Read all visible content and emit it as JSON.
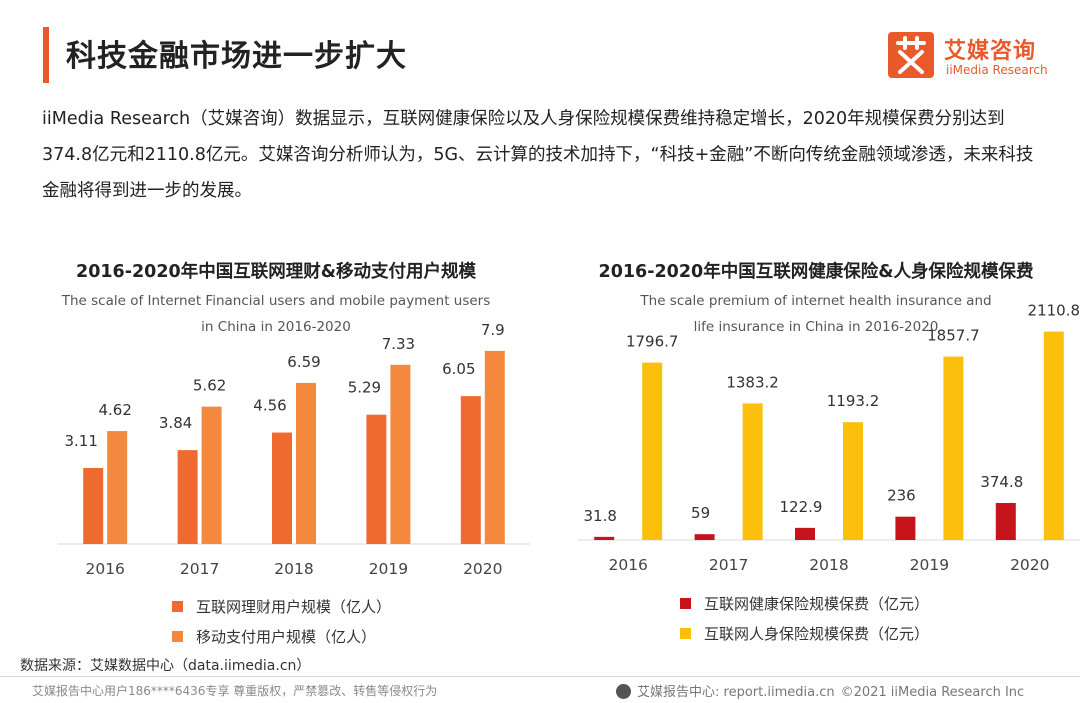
{
  "header": {
    "title": "科技金融市场进一步扩大",
    "logo_cn": "艾媒咨询",
    "logo_en": "iiMedia Research",
    "intro": "iiMedia Research（艾媒咨询）数据显示，互联网健康保险以及人身保险规模保费维持稳定增长，2020年规模保费分别达到374.8亿元和2110.8亿元。艾媒咨询分析师认为，5G、云计算的技术加持下，“科技+金融”不断向传统金融领域渗透，未来科技金融将得到进一步的发展。"
  },
  "colors": {
    "accent": "#e9592a",
    "financial_users": "#ef6a2e",
    "mobile_payment": "#f4893d",
    "health_insurance": "#c7141b",
    "life_insurance": "#fbbf0c"
  },
  "chart_data": [
    {
      "type": "bar",
      "title": "2016-2020年中国互联网理财&移动支付用户规模",
      "subtitle_en_line1": "The scale of Internet Financial users and mobile payment users",
      "subtitle_en_line2": "in China in 2016-2020",
      "categories": [
        "2016",
        "2017",
        "2018",
        "2019",
        "2020"
      ],
      "series": [
        {
          "name": "互联网理财用户规模（亿人）",
          "values": [
            3.11,
            3.84,
            4.56,
            5.29,
            6.05
          ],
          "labels": [
            "3.11",
            "3.84",
            "4.56",
            "5.29",
            "6.05"
          ]
        },
        {
          "name": "移动支付用户规模（亿人）",
          "values": [
            4.62,
            5.62,
            6.59,
            7.33,
            7.9
          ],
          "labels": [
            "4.62",
            "5.62",
            "6.59",
            "7.33",
            "7.9"
          ]
        }
      ],
      "ylim": [
        0,
        9
      ]
    },
    {
      "type": "bar",
      "title": "2016-2020年中国互联网健康保险&人身保险规模保费",
      "subtitle_en_line1": "The scale premium of internet health insurance and",
      "subtitle_en_line2": "life insurance  in China in 2016-2020",
      "categories": [
        "2016",
        "2017",
        "2018",
        "2019",
        "2020"
      ],
      "series": [
        {
          "name": "互联网健康保险规模保费（亿元）",
          "values": [
            31.8,
            59,
            122.9,
            236,
            374.8
          ],
          "labels": [
            "31.8",
            "59",
            "122.9",
            "236",
            "374.8"
          ]
        },
        {
          "name": "互联网人身保险规模保费（亿元）",
          "values": [
            1796.7,
            1383.2,
            1193.2,
            1857.7,
            2110.8
          ],
          "labels": [
            "1796.7",
            "1383.2",
            "1193.2",
            "1857.7",
            "2110.8"
          ]
        }
      ],
      "ylim": [
        0,
        2400
      ]
    }
  ],
  "footer": {
    "source": "数据来源：艾媒数据中心（data.iimedia.cn）",
    "copyright_notice": "艾媒报告中心用户186****6436专享 尊重版权，严禁篡改、转售等侵权行为",
    "report_center": "艾媒报告中心: report.iimedia.cn",
    "copyright": "©2021  iiMedia Research  Inc"
  }
}
